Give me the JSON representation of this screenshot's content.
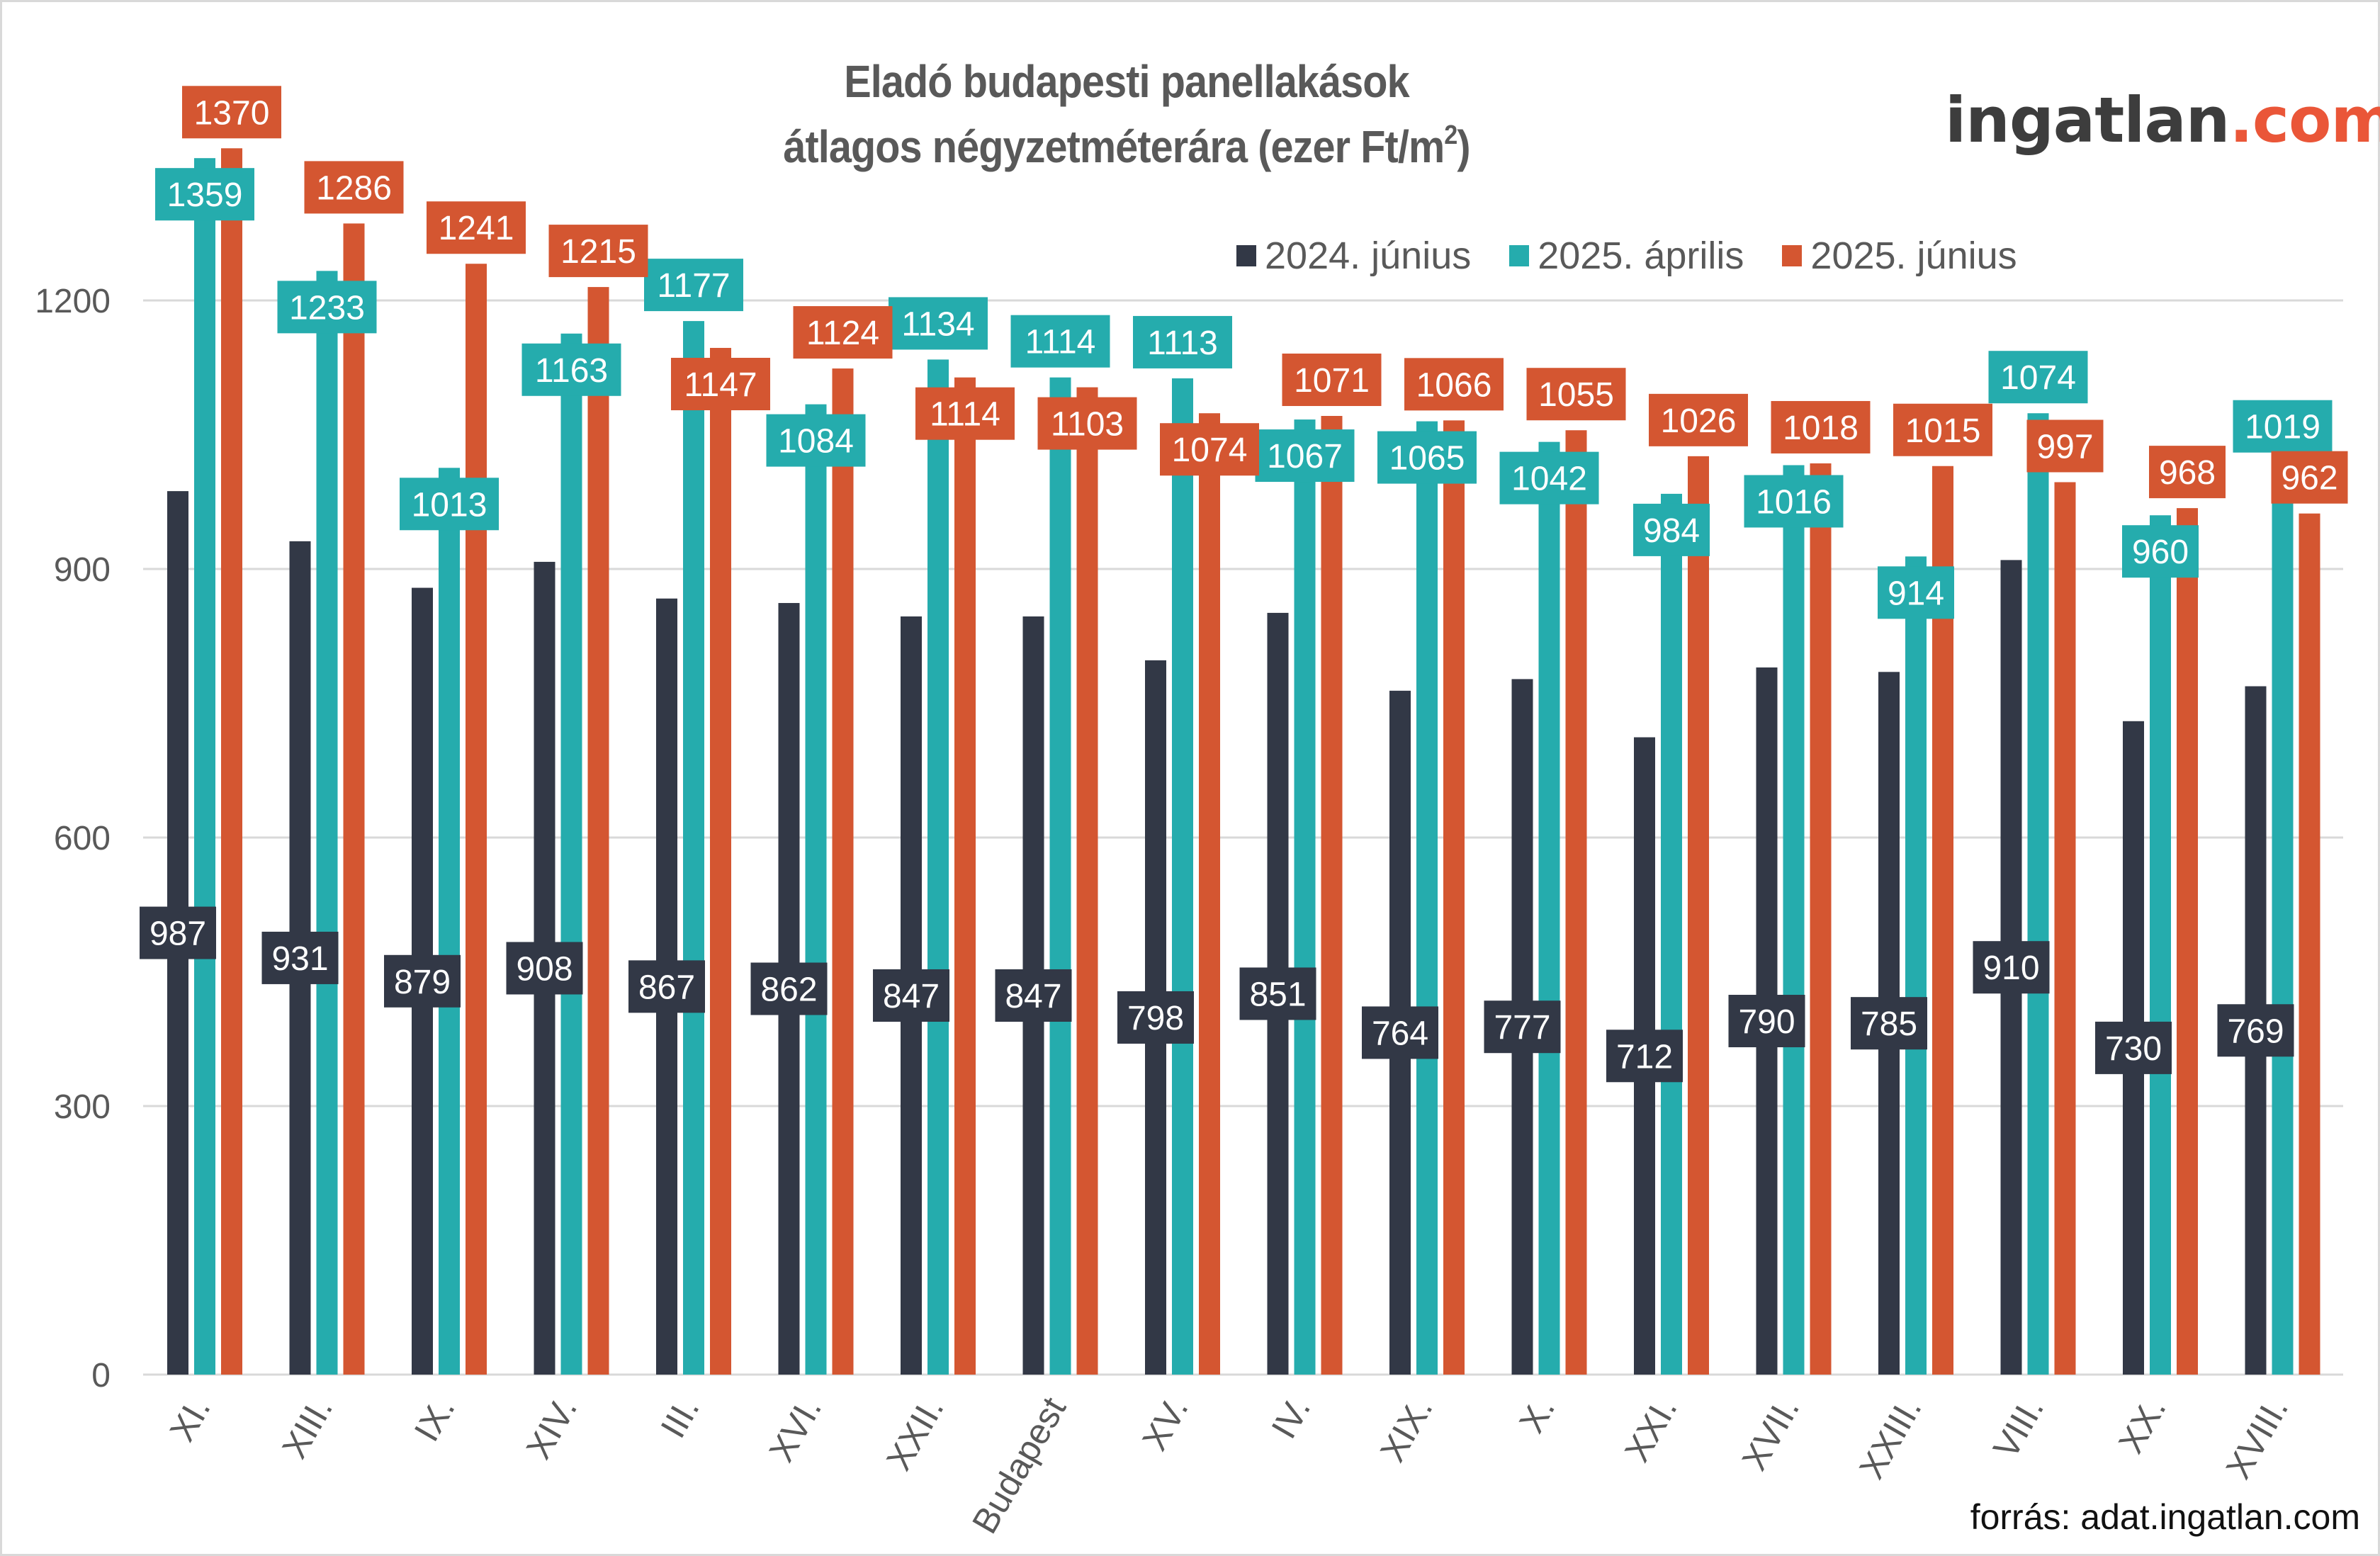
{
  "title": {
    "line1": "Eladó budapesti panellakások",
    "line2": "átlagos négyzetméterára (ezer Ft/m",
    "line2_sup": "2",
    "line2_end": ")"
  },
  "logo": {
    "name": "ingatlan",
    "tld": ".com",
    "accent_color": "#ea5638"
  },
  "source": "forrás: adat.ingatlan.com",
  "chart_data": {
    "type": "bar",
    "title": "Eladó budapesti panellakások átlagos négyzetméterára (ezer Ft/m²)",
    "xlabel": "",
    "ylabel": "",
    "ylim": [
      0,
      1400
    ],
    "yticks": [
      0,
      300,
      600,
      900,
      1200
    ],
    "grid": true,
    "legend_position": "top-right",
    "categories": [
      "XI.",
      "XIII.",
      "IX.",
      "XIV.",
      "III.",
      "XVI.",
      "XXII.",
      "Budapest",
      "XV.",
      "IV.",
      "XIX.",
      "X.",
      "XXI.",
      "XVII.",
      "XXIII.",
      "VIII.",
      "XX.",
      "XVIII."
    ],
    "series": [
      {
        "name": "2024. június",
        "color": "#323846",
        "values": [
          987,
          931,
          879,
          908,
          867,
          862,
          847,
          847,
          798,
          851,
          764,
          777,
          712,
          790,
          785,
          910,
          730,
          769
        ]
      },
      {
        "name": "2025. április",
        "color": "#25acad",
        "values": [
          1359,
          1233,
          1013,
          1163,
          1177,
          1084,
          1134,
          1114,
          1113,
          1067,
          1065,
          1042,
          984,
          1016,
          914,
          1074,
          960,
          1019
        ]
      },
      {
        "name": "2025. június",
        "color": "#d45631",
        "values": [
          1370,
          1286,
          1241,
          1215,
          1147,
          1124,
          1114,
          1103,
          1074,
          1071,
          1066,
          1055,
          1026,
          1018,
          1015,
          997,
          968,
          962
        ]
      }
    ]
  }
}
